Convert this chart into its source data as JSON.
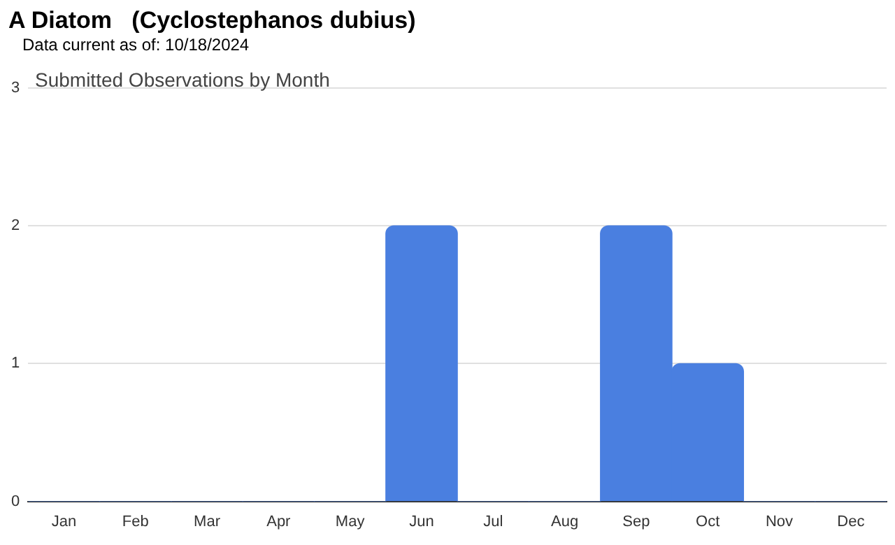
{
  "chart_data": {
    "type": "bar",
    "title": "A Diatom   (Cyclostephanos dubius)",
    "subtitle": "Data current as of: 10/18/2024",
    "annotations": [
      "Submitted Observations by Month"
    ],
    "categories": [
      "Jan",
      "Feb",
      "Mar",
      "Apr",
      "May",
      "Jun",
      "Jul",
      "Aug",
      "Sep",
      "Oct",
      "Nov",
      "Dec"
    ],
    "values": [
      0,
      0,
      0,
      0,
      0,
      2,
      0,
      0,
      2,
      1,
      0,
      0
    ],
    "color": "#4a7fe0",
    "ylim": [
      0,
      3
    ],
    "yticks": [
      0,
      1,
      2,
      3
    ],
    "grid": "y"
  }
}
